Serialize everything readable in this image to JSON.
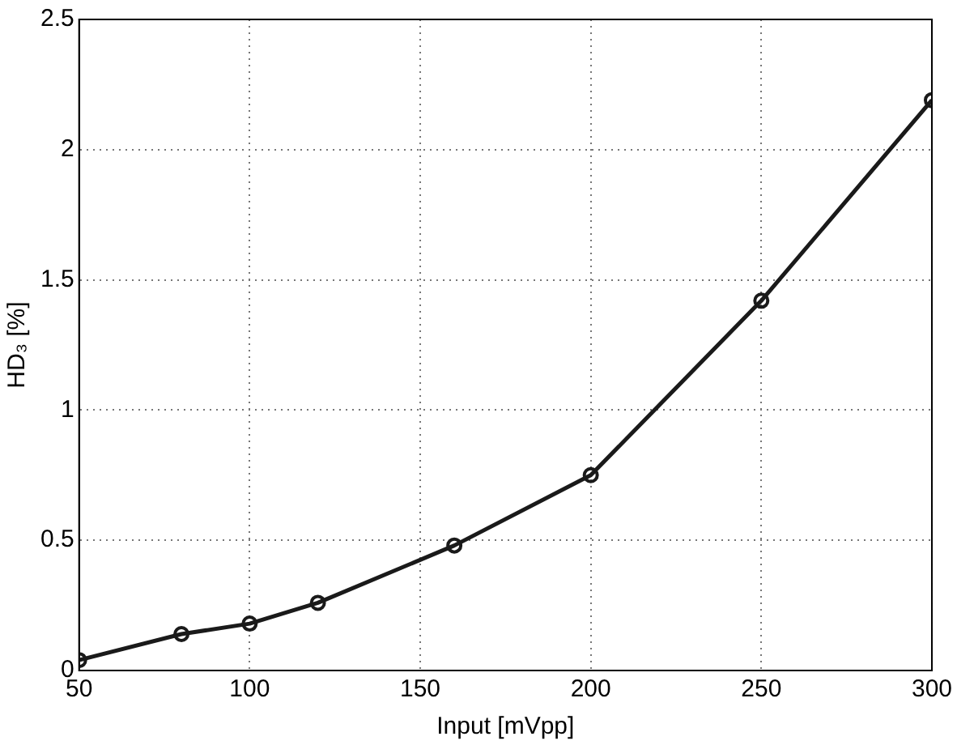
{
  "chart_data": {
    "type": "line",
    "xlabel": "Input [mVpp]",
    "ylabel": "HD₃ [%]",
    "x": [
      50,
      80,
      100,
      120,
      160,
      200,
      250,
      300
    ],
    "series": [
      {
        "color": "#1a1a1a",
        "values": [
          0.04,
          0.14,
          0.18,
          0.26,
          0.48,
          0.75,
          1.42,
          2.19
        ]
      }
    ],
    "xlim": [
      50,
      300
    ],
    "xticks": [
      50,
      100,
      150,
      200,
      250,
      300
    ],
    "ylim": [
      0,
      2.5
    ],
    "yticks": [
      0,
      0.5,
      1,
      1.5,
      2,
      2.5
    ],
    "grid": true,
    "marker": "circle",
    "line_style": "solid"
  }
}
